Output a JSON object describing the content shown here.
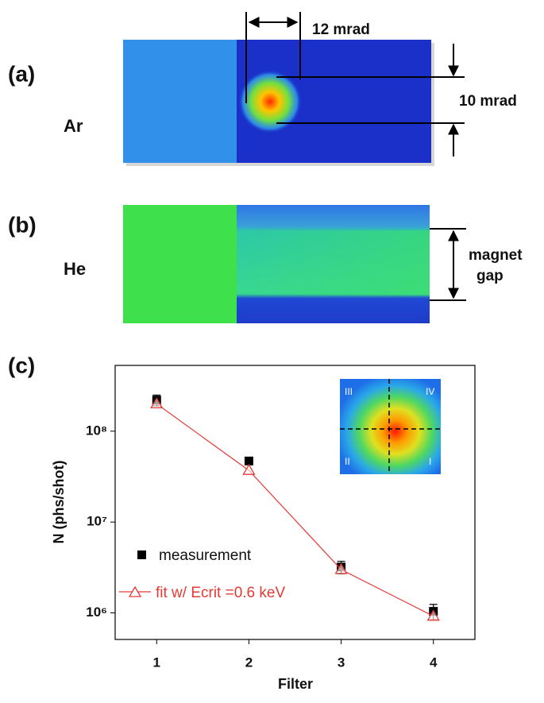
{
  "panels": [
    {
      "label": "(a)",
      "gas": "Ar",
      "annotations": [
        "12 mrad",
        "10 mrad"
      ]
    },
    {
      "label": "(b)",
      "gas": "He",
      "annotations": [
        "magnet",
        "gap"
      ]
    }
  ],
  "chart_data": {
    "type": "line",
    "panel_label": "(c)",
    "x_label": "Filter",
    "y_label": "N (phs/shot)",
    "x": [
      1,
      2,
      3,
      4
    ],
    "xlim": [
      0.55,
      4.45
    ],
    "xticks": [
      1,
      2,
      3,
      4
    ],
    "ylim": [
      510000,
      530000000
    ],
    "log_y": true,
    "yticks": [
      {
        "value": 1000000,
        "label": "10⁶"
      },
      {
        "value": 10000000,
        "label": "10⁷"
      },
      {
        "value": 100000000,
        "label": "10⁸"
      }
    ],
    "series": [
      {
        "name": "measurement",
        "color": "#000000",
        "marker": "square",
        "values": [
          220000000,
          47000000,
          3200000,
          1040000
        ],
        "errors": [
          30000000,
          4000000,
          500000,
          200000
        ]
      },
      {
        "name": "fit w/ Ecrit =0.6 keV",
        "color": "#e53935",
        "marker": "open-triangle",
        "line": true,
        "values": [
          200000000,
          37000000,
          3000000,
          920000
        ]
      }
    ],
    "inset_labels": [
      "III",
      "IV",
      "II",
      "I"
    ]
  }
}
